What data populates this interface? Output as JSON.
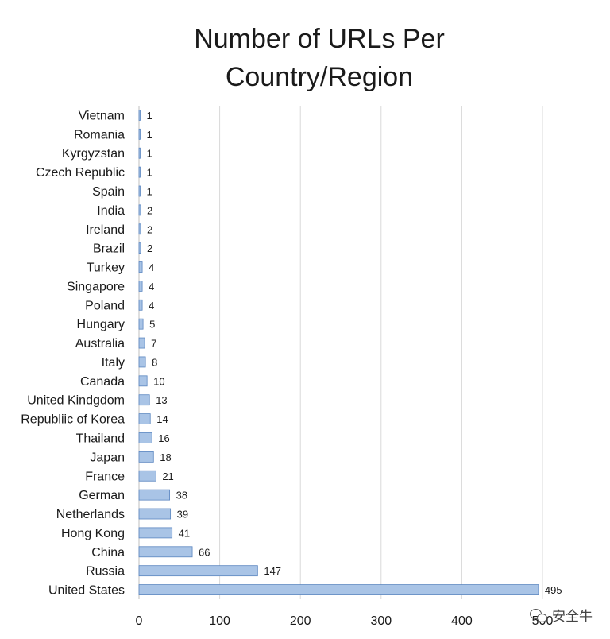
{
  "chart_data": {
    "type": "bar",
    "orientation": "horizontal",
    "title_lines": [
      "Number of URLs Per",
      "Country/Region"
    ],
    "categories": [
      "Vietnam",
      "Romania",
      "Kyrgyzstan",
      "Czech Republic",
      "Spain",
      "India",
      "Ireland",
      "Brazil",
      "Turkey",
      "Singapore",
      "Poland",
      "Hungary",
      "Australia",
      "Italy",
      "Canada",
      "United Kindgdom",
      "Republiic of Korea",
      "Thailand",
      "Japan",
      "France",
      "German",
      "Netherlands",
      "Hong Kong",
      "China",
      "Russia",
      "United States"
    ],
    "values": [
      1,
      1,
      1,
      1,
      1,
      2,
      2,
      2,
      4,
      4,
      4,
      5,
      7,
      8,
      10,
      13,
      14,
      16,
      18,
      21,
      38,
      39,
      41,
      66,
      147,
      495
    ],
    "xlim": [
      0,
      500
    ],
    "xticks": [
      "0",
      "100",
      "200",
      "300",
      "400",
      "500"
    ],
    "grid": true,
    "bar_color": "#a9c4e6",
    "bar_edge_color": "#5b86c0",
    "grid_color": "#d9d9d9"
  },
  "watermark": "安全牛"
}
